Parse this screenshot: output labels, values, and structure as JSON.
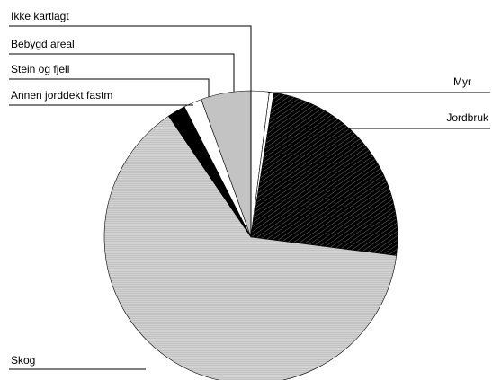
{
  "chart_data": {
    "type": "pie",
    "title": "",
    "slices": [
      {
        "label": "Ikke kartlagt",
        "value": 2.0,
        "color": "#ffffff",
        "texture": "none"
      },
      {
        "label": "Myr",
        "value": 0.5,
        "color": "#cccccc",
        "texture": "stripes"
      },
      {
        "label": "Jordbruk",
        "value": 24.5,
        "color": "#000000",
        "texture": "stripes"
      },
      {
        "label": "Skog",
        "value": 63.5,
        "color": "#d2d2d2",
        "texture": "fine-lines"
      },
      {
        "label": "Annen jorddekt fastm",
        "value": 2.0,
        "color": "#000000",
        "texture": "none"
      },
      {
        "label": "Stein og fjell",
        "value": 2.0,
        "color": "#ffffff",
        "texture": "none"
      },
      {
        "label": "Bebygd areal",
        "value": 5.5,
        "color": "#c3c3c3",
        "texture": "none"
      }
    ]
  }
}
